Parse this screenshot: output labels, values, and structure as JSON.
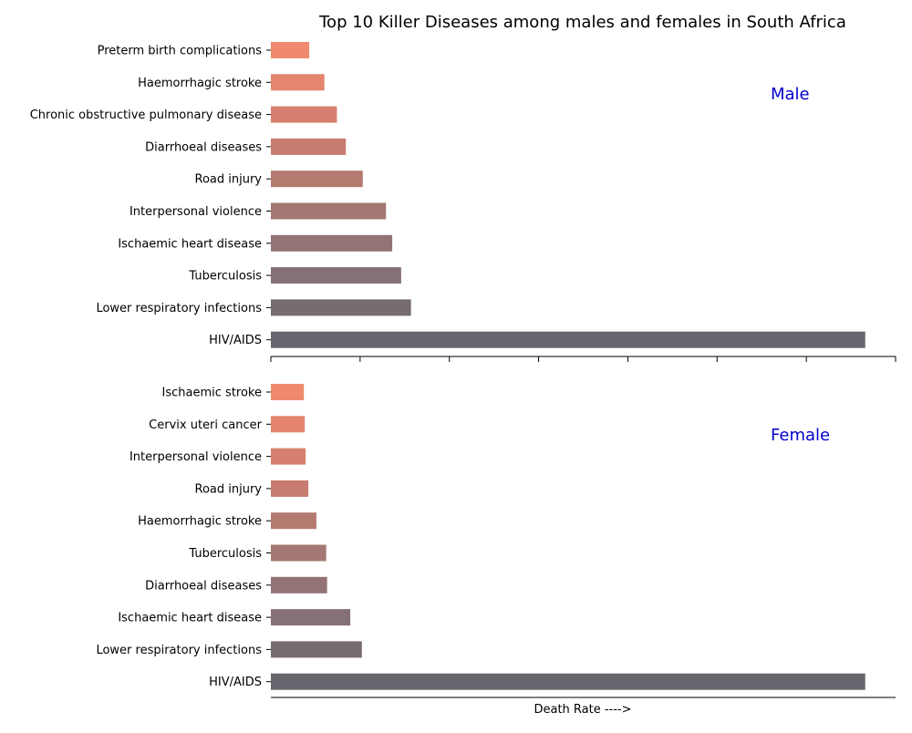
{
  "chart_data": {
    "type": "bar",
    "orientation": "horizontal",
    "title": "Top 10 Killer Diseases among males and females in South Africa",
    "xlabel": "Death Rate ---->",
    "shared_x_axis": true,
    "x_tick_labels_visible": false,
    "xlim": [
      0,
      7000
    ],
    "grid": false,
    "colors": [
      "#f08a6f",
      "#e5846f",
      "#d8806f",
      "#c77c6f",
      "#b47a70",
      "#a37872",
      "#937374",
      "#857076",
      "#776c72",
      "#66666e"
    ],
    "panels": [
      {
        "label": "Male",
        "categories": [
          "Preterm birth complications",
          "Haemorrhagic stroke",
          "Chronic obstructive pulmonary disease",
          "Diarrhoeal diseases",
          "Road injury",
          "Interpersonal violence",
          "Ischaemic heart disease",
          "Tuberculosis",
          "Lower respiratory infections",
          "HIV/AIDS"
        ],
        "values": [
          430,
          600,
          740,
          840,
          1030,
          1290,
          1360,
          1460,
          1570,
          6660
        ]
      },
      {
        "label": "Female",
        "categories": [
          "Ischaemic stroke",
          "Cervix uteri cancer",
          "Interpersonal violence",
          "Road injury",
          "Haemorrhagic stroke",
          "Tuberculosis",
          "Diarrhoeal diseases",
          "Ischaemic heart disease",
          "Lower respiratory infections",
          "HIV/AIDS"
        ],
        "values": [
          370,
          380,
          390,
          420,
          510,
          620,
          630,
          890,
          1020,
          6660
        ]
      }
    ]
  }
}
